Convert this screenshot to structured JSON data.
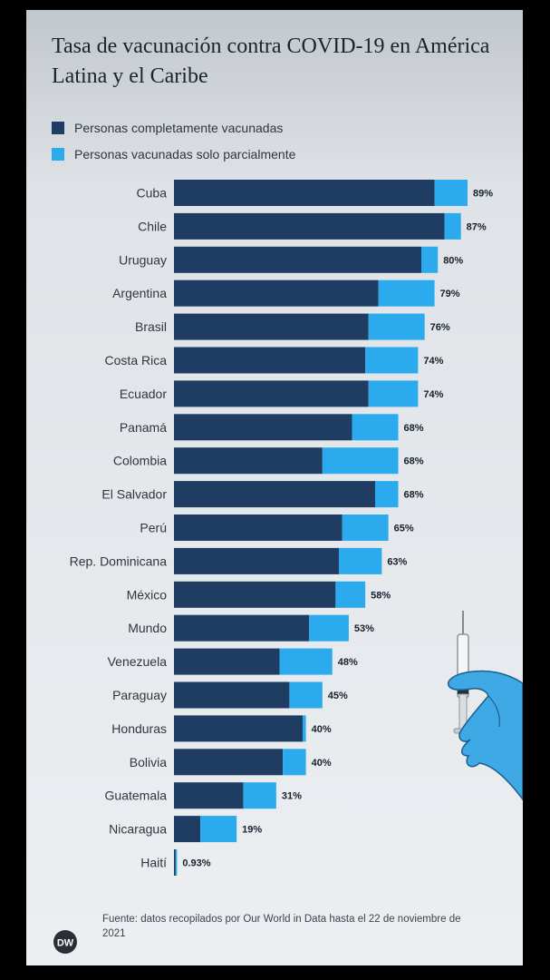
{
  "header": {
    "title": "Tasa de vacunación contra COVID-19 en América Latina y el Caribe"
  },
  "legend": {
    "full": "Personas completamente vacunadas",
    "partial": "Personas vacunadas solo parcialmente"
  },
  "colors": {
    "full": "#1f3d62",
    "partial": "#2baaee",
    "background": "#e6e9ec"
  },
  "chart_data": {
    "type": "bar",
    "orientation": "horizontal",
    "stacked": true,
    "title": "Tasa de vacunación contra COVID-19 en América Latina y el Caribe",
    "xlim": [
      0,
      100
    ],
    "grid": false,
    "legend_position": "top-left",
    "categories": [
      "Cuba",
      "Chile",
      "Uruguay",
      "Argentina",
      "Brasil",
      "Costa Rica",
      "Ecuador",
      "Panamá",
      "Colombia",
      "El Salvador",
      "Perú",
      "Rep. Dominicana",
      "México",
      "Mundo",
      "Venezuela",
      "Paraguay",
      "Honduras",
      "Bolivia",
      "Guatemala",
      "Nicaragua",
      "Haití"
    ],
    "series": [
      {
        "name": "Personas completamente vacunadas",
        "values": [
          79,
          82,
          75,
          62,
          59,
          58,
          59,
          54,
          45,
          61,
          51,
          50,
          49,
          41,
          32,
          35,
          39,
          33,
          21,
          8,
          0.5
        ]
      },
      {
        "name": "Personas vacunadas solo parcialmente",
        "values": [
          10,
          5,
          5,
          17,
          17,
          16,
          15,
          14,
          23,
          7,
          14,
          13,
          9,
          12,
          16,
          10,
          1,
          7,
          10,
          11,
          0.43
        ]
      }
    ],
    "totals": [
      89,
      87,
      80,
      79,
      76,
      74,
      74,
      68,
      68,
      68,
      65,
      63,
      58,
      53,
      48,
      45,
      40,
      40,
      31,
      19,
      0.93
    ],
    "total_labels": [
      "89%",
      "87%",
      "80%",
      "79%",
      "76%",
      "74%",
      "74%",
      "68%",
      "68%",
      "68%",
      "65%",
      "63%",
      "58%",
      "53%",
      "48%",
      "45%",
      "40%",
      "40%",
      "31%",
      "19%",
      "0.93%"
    ]
  },
  "footer": {
    "source": "Fuente: datos recopilados por Our World in Data hasta el 22 de noviembre de 2021",
    "logo_text": "DW"
  },
  "illustration": {
    "icon": "gloved-hand-syringe-icon"
  }
}
